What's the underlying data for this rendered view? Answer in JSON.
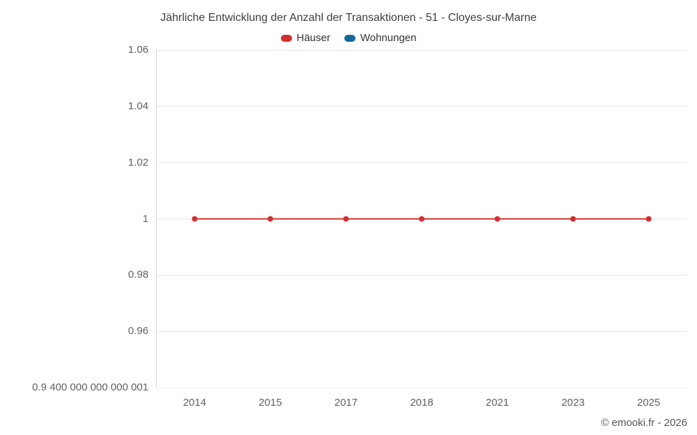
{
  "header": {
    "title": "Jährliche Entwicklung der Anzahl der Transaktionen - 51 - Cloyes-sur-Marne"
  },
  "legend": {
    "items": [
      {
        "label": "Häuser",
        "color": "#d32f2f"
      },
      {
        "label": "Wohnungen",
        "color": "#16679a"
      }
    ]
  },
  "footer": {
    "credit": "© emooki.fr - 2026"
  },
  "chart_data": {
    "type": "line",
    "title": "Jährliche Entwicklung der Anzahl der Transaktionen - 51 - Cloyes-sur-Marne",
    "categories": [
      "2014",
      "2015",
      "2017",
      "2018",
      "2021",
      "2023",
      "2025"
    ],
    "series": [
      {
        "name": "Häuser",
        "color": "#d32f2f",
        "values": [
          1,
          1,
          1,
          1,
          1,
          1,
          1
        ]
      },
      {
        "name": "Wohnungen",
        "color": "#16679a",
        "values": []
      }
    ],
    "xlabel": "",
    "ylabel": "",
    "ylim": [
      0.9400000000000001,
      1.06
    ],
    "yticks": [
      {
        "value": 1.06,
        "label": "1.06"
      },
      {
        "value": 1.04,
        "label": "1.04"
      },
      {
        "value": 1.02,
        "label": "1.02"
      },
      {
        "value": 1,
        "label": "1"
      },
      {
        "value": 0.98,
        "label": "0.98"
      },
      {
        "value": 0.96,
        "label": "0.96"
      },
      {
        "value": 0.9400000000000001,
        "label": "0.9 400 000 000 000 001"
      }
    ],
    "grid": true,
    "legend_position": "top"
  }
}
